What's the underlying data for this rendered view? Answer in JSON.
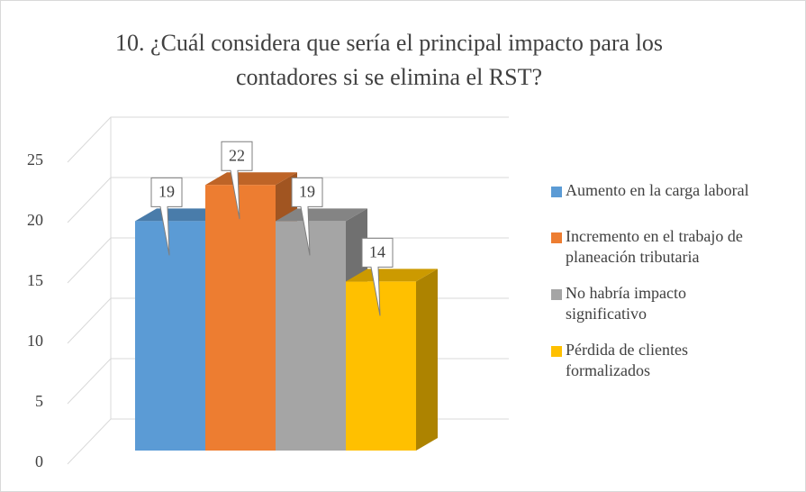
{
  "chart_data": {
    "type": "bar3d",
    "title": "10. ¿Cuál considera que sería el principal impacto para los contadores si se elimina el RST?",
    "series": [
      {
        "name": "Aumento en la carga laboral",
        "color": "#5b9bd5",
        "values": [
          19
        ]
      },
      {
        "name": "Incremento en el trabajo de planeación tributaria",
        "color": "#ed7d31",
        "values": [
          22
        ]
      },
      {
        "name": "No habría impacto significativo",
        "color": "#a5a5a5",
        "values": [
          19
        ]
      },
      {
        "name": "Pérdida de clientes formalizados",
        "color": "#ffc000",
        "values": [
          14
        ]
      }
    ],
    "ylim": [
      0,
      25
    ],
    "yticks": [
      0,
      5,
      10,
      15,
      20,
      25
    ],
    "grid": true,
    "legend": "right"
  }
}
